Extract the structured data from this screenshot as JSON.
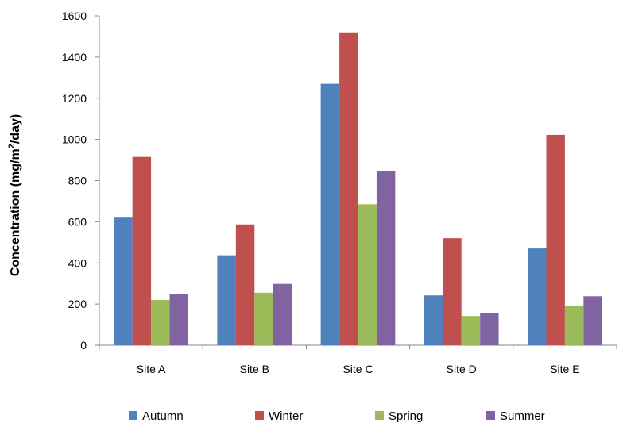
{
  "chart_data": {
    "type": "bar",
    "categories": [
      "Site A",
      "Site B",
      "Site C",
      "Site D",
      "Site E"
    ],
    "series": [
      {
        "name": "Autumn",
        "color": "#4F81BD",
        "values": [
          620,
          437,
          1270,
          242,
          470
        ]
      },
      {
        "name": "Winter",
        "color": "#C0504D",
        "values": [
          915,
          587,
          1520,
          520,
          1022
        ]
      },
      {
        "name": "Spring",
        "color": "#9BBB59",
        "values": [
          220,
          255,
          685,
          142,
          193
        ]
      },
      {
        "name": "Summer",
        "color": "#8064A2",
        "values": [
          248,
          298,
          845,
          157,
          238
        ]
      }
    ],
    "ylabel_main": "Concentration (mg/m",
    "ylabel_sup": "2",
    "ylabel_tail": "/day)",
    "xlabel": "",
    "title": "",
    "ylim": [
      0,
      1600
    ],
    "yticks": [
      "0",
      "200",
      "400",
      "600",
      "800",
      "1000",
      "1200",
      "1400",
      "1600"
    ],
    "grid": false,
    "legend_position": "bottom"
  }
}
